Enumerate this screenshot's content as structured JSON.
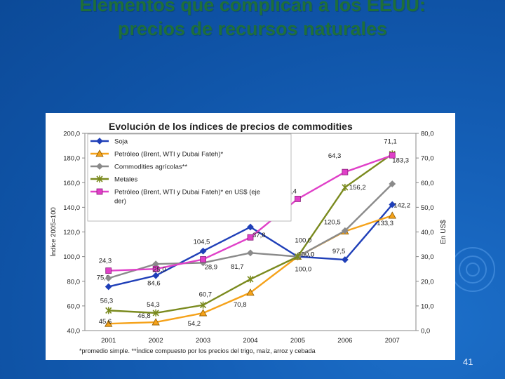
{
  "slide": {
    "title_line1": "Elementos que complican a los EEUU:",
    "title_line2": "precios de recursos naturales",
    "page_number": "41"
  },
  "colors": {
    "background": "#1262b5",
    "title": "#1f6f3a",
    "soja": "#1f3fb8",
    "petroleo": "#f5a21a",
    "commodities": "#8a8a8a",
    "metales": "#7a8a1e",
    "petroleo_usd": "#e040c8"
  },
  "chart_data": {
    "type": "line",
    "title": "Evolución de los índices de precios de commodities",
    "ylabel": "Índice 2005=100",
    "y2label": "En US$",
    "categories": [
      "2001",
      "2002",
      "2003",
      "2004",
      "2005",
      "2006",
      "2007"
    ],
    "ylim": [
      40,
      200
    ],
    "yticks": [
      "40,0",
      "60,0",
      "80,0",
      "100,0",
      "120,0",
      "140,0",
      "160,0",
      "180,0",
      "200,0"
    ],
    "y2lim": [
      0,
      80
    ],
    "y2ticks": [
      "0,0",
      "10,0",
      "20,0",
      "30,0",
      "40,0",
      "50,0",
      "60,0",
      "70,0",
      "80,0"
    ],
    "footnote": "*promedio simple. **Índice compuesto por los precios del trigo, maíz, arroz y cebada",
    "series": [
      {
        "name": "Soja",
        "axis": "left",
        "marker": "diamond",
        "color": "#1f3fb8",
        "values": [
          75.6,
          84.6,
          104.5,
          124.0,
          100.0,
          97.5,
          142.2
        ],
        "labels": [
          "75,6",
          "84,6",
          "104,5",
          "124,0",
          "100,0",
          "97,5",
          "142,2"
        ]
      },
      {
        "name": "Petróleo (Brent, WTI y Dubai Fateh)*",
        "axis": "left",
        "marker": "triangle",
        "color": "#f5a21a",
        "values": [
          45.6,
          46.8,
          54.2,
          70.8,
          100.0,
          120.5,
          133.3
        ],
        "labels": [
          "45,6",
          "46,8",
          "54,2",
          "70,8",
          "100,0",
          "120,5",
          "133,3"
        ]
      },
      {
        "name": "Commodities agrícolas**",
        "axis": "left",
        "marker": "diamond",
        "color": "#8a8a8a",
        "values": [
          82.5,
          94.0,
          95.0,
          103.0,
          100.0,
          121.0,
          159.0
        ],
        "labels": []
      },
      {
        "name": "Metales",
        "axis": "left",
        "marker": "star",
        "color": "#7a8a1e",
        "values": [
          56.3,
          54.3,
          60.7,
          81.7,
          100.0,
          156.2,
          183.3
        ],
        "labels": [
          "56,3",
          "54,3",
          "60,7",
          "81,7",
          "",
          "156,2",
          "183,3"
        ]
      },
      {
        "name": "Petróleo (Brent, WTI y Dubai Fateh)* en US$ (eje der)",
        "axis": "right",
        "marker": "square",
        "color": "#e040c8",
        "values": [
          24.3,
          25.0,
          28.9,
          37.8,
          53.4,
          64.3,
          71.1
        ],
        "labels": [
          "24,3",
          "25,0",
          "28,9",
          "37,8",
          "53,4",
          "64,3",
          "71,1"
        ]
      }
    ]
  }
}
